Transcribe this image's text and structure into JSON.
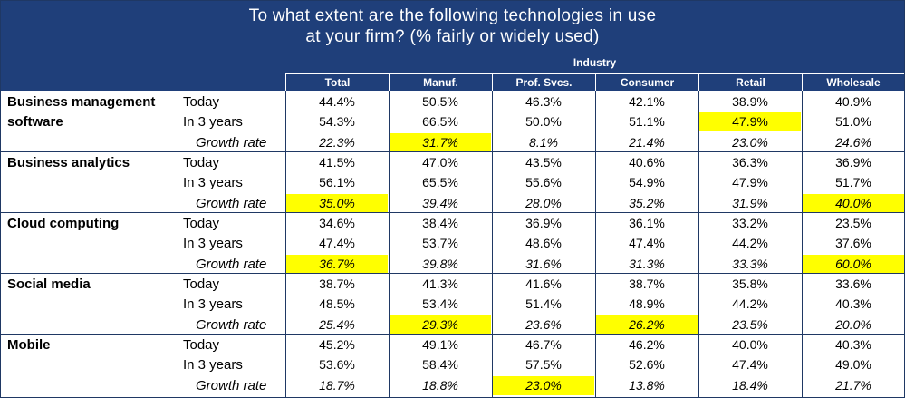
{
  "title_line1": "To what extent are the following technologies in use",
  "title_line2": "at your firm? (% fairly or widely used)",
  "industry_label": "Industry",
  "highlight_color": "#ffff00",
  "header_color": "#1f3f7a",
  "chart_data": {
    "type": "table",
    "columns": [
      "Total",
      "Manuf.",
      "Prof. Svcs.",
      "Consumer",
      "Retail",
      "Wholesale"
    ],
    "groups": [
      {
        "category_lines": [
          "Business management",
          "software"
        ],
        "rows": [
          {
            "label": "Today",
            "italic": false,
            "values": [
              "44.4%",
              "50.5%",
              "46.3%",
              "42.1%",
              "38.9%",
              "40.9%"
            ],
            "highlight": []
          },
          {
            "label": "In 3 years",
            "italic": false,
            "values": [
              "54.3%",
              "66.5%",
              "50.0%",
              "51.1%",
              "47.9%",
              "51.0%"
            ],
            "highlight": [
              4
            ]
          },
          {
            "label": "Growth rate",
            "italic": true,
            "values": [
              "22.3%",
              "31.7%",
              "8.1%",
              "21.4%",
              "23.0%",
              "24.6%"
            ],
            "highlight": [
              1
            ]
          }
        ]
      },
      {
        "category_lines": [
          "Business analytics"
        ],
        "rows": [
          {
            "label": "Today",
            "italic": false,
            "values": [
              "41.5%",
              "47.0%",
              "43.5%",
              "40.6%",
              "36.3%",
              "36.9%"
            ],
            "highlight": []
          },
          {
            "label": "In 3 years",
            "italic": false,
            "values": [
              "56.1%",
              "65.5%",
              "55.6%",
              "54.9%",
              "47.9%",
              "51.7%"
            ],
            "highlight": []
          },
          {
            "label": "Growth rate",
            "italic": true,
            "values": [
              "35.0%",
              "39.4%",
              "28.0%",
              "35.2%",
              "31.9%",
              "40.0%"
            ],
            "highlight": [
              0,
              5
            ]
          }
        ]
      },
      {
        "category_lines": [
          "Cloud computing"
        ],
        "rows": [
          {
            "label": "Today",
            "italic": false,
            "values": [
              "34.6%",
              "38.4%",
              "36.9%",
              "36.1%",
              "33.2%",
              "23.5%"
            ],
            "highlight": []
          },
          {
            "label": "In 3 years",
            "italic": false,
            "values": [
              "47.4%",
              "53.7%",
              "48.6%",
              "47.4%",
              "44.2%",
              "37.6%"
            ],
            "highlight": []
          },
          {
            "label": "Growth rate",
            "italic": true,
            "values": [
              "36.7%",
              "39.8%",
              "31.6%",
              "31.3%",
              "33.3%",
              "60.0%"
            ],
            "highlight": [
              0,
              5
            ]
          }
        ]
      },
      {
        "category_lines": [
          "Social media"
        ],
        "rows": [
          {
            "label": "Today",
            "italic": false,
            "values": [
              "38.7%",
              "41.3%",
              "41.6%",
              "38.7%",
              "35.8%",
              "33.6%"
            ],
            "highlight": []
          },
          {
            "label": "In 3 years",
            "italic": false,
            "values": [
              "48.5%",
              "53.4%",
              "51.4%",
              "48.9%",
              "44.2%",
              "40.3%"
            ],
            "highlight": []
          },
          {
            "label": "Growth rate",
            "italic": true,
            "values": [
              "25.4%",
              "29.3%",
              "23.6%",
              "26.2%",
              "23.5%",
              "20.0%"
            ],
            "highlight": [
              1,
              3
            ]
          }
        ]
      },
      {
        "category_lines": [
          "Mobile"
        ],
        "rows": [
          {
            "label": "Today",
            "italic": false,
            "values": [
              "45.2%",
              "49.1%",
              "46.7%",
              "46.2%",
              "40.0%",
              "40.3%"
            ],
            "highlight": []
          },
          {
            "label": "In 3 years",
            "italic": false,
            "values": [
              "53.6%",
              "58.4%",
              "57.5%",
              "52.6%",
              "47.4%",
              "49.0%"
            ],
            "highlight": []
          },
          {
            "label": "Growth rate",
            "italic": true,
            "values": [
              "18.7%",
              "18.8%",
              "23.0%",
              "13.8%",
              "18.4%",
              "21.7%"
            ],
            "highlight": [
              2
            ]
          }
        ]
      }
    ]
  }
}
